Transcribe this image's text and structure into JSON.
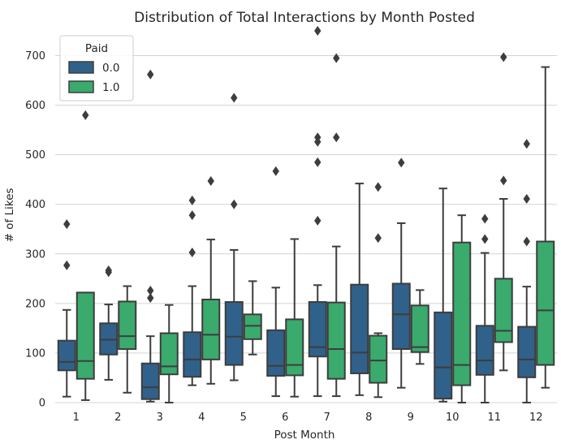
{
  "chart_data": {
    "type": "box",
    "title": "Distribution of Total Interactions by Month Posted",
    "xlabel": "Post Month",
    "ylabel": "# of Likes",
    "ylim": [
      0,
      750
    ],
    "yticks": [
      0,
      100,
      200,
      300,
      400,
      500,
      600,
      700
    ],
    "categories": [
      "1",
      "2",
      "3",
      "4",
      "5",
      "6",
      "7",
      "8",
      "9",
      "10",
      "11",
      "12"
    ],
    "grid": "horizontal",
    "legend": {
      "title": "Paid",
      "placement": "top-left"
    },
    "series": [
      {
        "name": "0.0",
        "color": "#30618a",
        "boxes": [
          {
            "whislo": 12,
            "q1": 65,
            "med": 82,
            "q3": 125,
            "whishi": 187,
            "fliers": [
              277,
              360
            ]
          },
          {
            "whislo": 46,
            "q1": 97,
            "med": 127,
            "q3": 160,
            "whishi": 198,
            "fliers": [
              263,
              267
            ]
          },
          {
            "whislo": 2,
            "q1": 7,
            "med": 31,
            "q3": 79,
            "whishi": 134,
            "fliers": [
              211,
              226,
              662
            ]
          },
          {
            "whislo": 35,
            "q1": 52,
            "med": 87,
            "q3": 142,
            "whishi": 235,
            "fliers": [
              303,
              378,
              408
            ]
          },
          {
            "whislo": 45,
            "q1": 76,
            "med": 133,
            "q3": 203,
            "whishi": 308,
            "fliers": [
              400,
              615
            ]
          },
          {
            "whislo": 13,
            "q1": 54,
            "med": 74,
            "q3": 146,
            "whishi": 232,
            "fliers": [
              467
            ]
          },
          {
            "whislo": 13,
            "q1": 93,
            "med": 112,
            "q3": 203,
            "whishi": 237,
            "fliers": [
              367,
              485,
              526,
              535,
              750
            ]
          },
          {
            "whislo": 15,
            "q1": 59,
            "med": 101,
            "q3": 238,
            "whishi": 442,
            "fliers": []
          },
          {
            "whislo": 30,
            "q1": 108,
            "med": 178,
            "q3": 240,
            "whishi": 362,
            "fliers": [
              484
            ]
          },
          {
            "whislo": 2,
            "q1": 8,
            "med": 71,
            "q3": 182,
            "whishi": 432,
            "fliers": []
          },
          {
            "whislo": 0,
            "q1": 56,
            "med": 85,
            "q3": 155,
            "whishi": 302,
            "fliers": [
              330,
              371
            ]
          },
          {
            "whislo": 0,
            "q1": 51,
            "med": 87,
            "q3": 153,
            "whishi": 234,
            "fliers": [
              325,
              411,
              522
            ]
          }
        ]
      },
      {
        "name": "1.0",
        "color": "#3aaa6d",
        "boxes": [
          {
            "whislo": 5,
            "q1": 48,
            "med": 84,
            "q3": 222,
            "whishi": 222,
            "fliers": [
              580
            ]
          },
          {
            "whislo": 20,
            "q1": 108,
            "med": 134,
            "q3": 204,
            "whishi": 235,
            "fliers": []
          },
          {
            "whislo": 0,
            "q1": 57,
            "med": 73,
            "q3": 140,
            "whishi": 197,
            "fliers": []
          },
          {
            "whislo": 38,
            "q1": 87,
            "med": 137,
            "q3": 208,
            "whishi": 329,
            "fliers": [
              447
            ]
          },
          {
            "whislo": 97,
            "q1": 128,
            "med": 155,
            "q3": 178,
            "whishi": 245,
            "fliers": []
          },
          {
            "whislo": 12,
            "q1": 55,
            "med": 76,
            "q3": 168,
            "whishi": 330,
            "fliers": []
          },
          {
            "whislo": 13,
            "q1": 48,
            "med": 108,
            "q3": 202,
            "whishi": 315,
            "fliers": [
              535,
              695
            ]
          },
          {
            "whislo": 11,
            "q1": 40,
            "med": 85,
            "q3": 135,
            "whishi": 140,
            "fliers": [
              332,
              435
            ]
          },
          {
            "whislo": 78,
            "q1": 102,
            "med": 112,
            "q3": 196,
            "whishi": 227,
            "fliers": []
          },
          {
            "whislo": 0,
            "q1": 35,
            "med": 76,
            "q3": 323,
            "whishi": 378,
            "fliers": []
          },
          {
            "whislo": 65,
            "q1": 122,
            "med": 145,
            "q3": 250,
            "whishi": 411,
            "fliers": [
              448,
              697
            ]
          },
          {
            "whislo": 30,
            "q1": 76,
            "med": 186,
            "q3": 325,
            "whishi": 677,
            "fliers": []
          }
        ]
      }
    ]
  }
}
